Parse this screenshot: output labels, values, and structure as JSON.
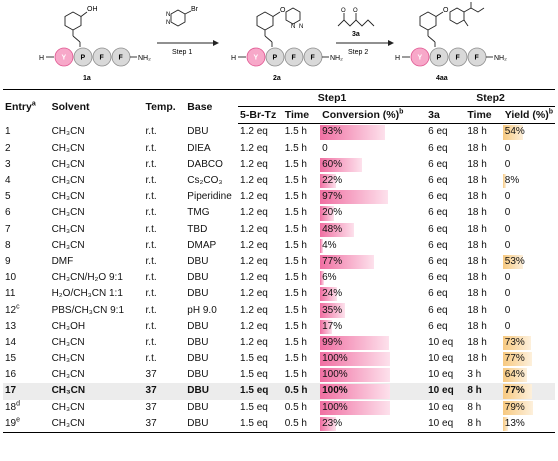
{
  "scheme": {
    "start_label": "1a",
    "inter_label": "2a",
    "product_label": "4aa",
    "step1_label": "Step 1",
    "step2_label": "Step 2",
    "reagent2_label": "3a",
    "peptide_residues": [
      "Y",
      "P",
      "F",
      "F"
    ],
    "n_term": "H",
    "c_term": "NH₂",
    "oh": "OH",
    "o": "O",
    "br": "Br",
    "n": "N",
    "colors": {
      "tyr": "#f7a8c9",
      "tyr_stroke": "#e05590",
      "res": "#d9d9d9",
      "res_stroke": "#8c8c8c"
    }
  },
  "table": {
    "headers": {
      "entry": "Entry",
      "entry_sup": "a",
      "solvent": "Solvent",
      "temp": "Temp.",
      "base": "Base",
      "step1": "Step1",
      "step2": "Step2",
      "brtz": "5-Br-Tz",
      "time1": "Time",
      "conv": "Conversion (%)",
      "conv_sup": "b",
      "eq3a": "3a",
      "time2": "Time",
      "yield": "Yield (%)",
      "yield_sup": "b"
    },
    "rows": [
      {
        "entry": "1",
        "entry_sup": "",
        "solvent": "CH₃CN",
        "temp": "r.t.",
        "base": "DBU",
        "brtz": "1.2 eq",
        "time1": "1.5 h",
        "conv": "93%",
        "conv_value": 93,
        "eq3a": "6 eq",
        "time2": "18 h",
        "yield": "54%",
        "yield_value": 54
      },
      {
        "entry": "2",
        "entry_sup": "",
        "solvent": "CH₃CN",
        "temp": "r.t.",
        "base": "DIEA",
        "brtz": "1.2 eq",
        "time1": "1.5 h",
        "conv": "0",
        "conv_value": 0,
        "eq3a": "6 eq",
        "time2": "18 h",
        "yield": "0",
        "yield_value": 0
      },
      {
        "entry": "3",
        "entry_sup": "",
        "solvent": "CH₃CN",
        "temp": "r.t.",
        "base": "DABCO",
        "brtz": "1.2 eq",
        "time1": "1.5 h",
        "conv": "60%",
        "conv_value": 60,
        "eq3a": "6 eq",
        "time2": "18 h",
        "yield": "0",
        "yield_value": 0
      },
      {
        "entry": "4",
        "entry_sup": "",
        "solvent": "CH₃CN",
        "temp": "r.t.",
        "base": "Cs₂CO₃",
        "brtz": "1.2 eq",
        "time1": "1.5 h",
        "conv": "22%",
        "conv_value": 22,
        "eq3a": "6 eq",
        "time2": "18 h",
        "yield": "8%",
        "yield_value": 8
      },
      {
        "entry": "5",
        "entry_sup": "",
        "solvent": "CH₃CN",
        "temp": "r.t.",
        "base": "Piperidine",
        "brtz": "1.2 eq",
        "time1": "1.5 h",
        "conv": "97%",
        "conv_value": 97,
        "eq3a": "6 eq",
        "time2": "18 h",
        "yield": "0",
        "yield_value": 0
      },
      {
        "entry": "6",
        "entry_sup": "",
        "solvent": "CH₃CN",
        "temp": "r.t.",
        "base": "TMG",
        "brtz": "1.2 eq",
        "time1": "1.5 h",
        "conv": "20%",
        "conv_value": 20,
        "eq3a": "6 eq",
        "time2": "18 h",
        "yield": "0",
        "yield_value": 0
      },
      {
        "entry": "7",
        "entry_sup": "",
        "solvent": "CH₃CN",
        "temp": "r.t.",
        "base": "TBD",
        "brtz": "1.2 eq",
        "time1": "1.5 h",
        "conv": "48%",
        "conv_value": 48,
        "eq3a": "6 eq",
        "time2": "18 h",
        "yield": "0",
        "yield_value": 0
      },
      {
        "entry": "8",
        "entry_sup": "",
        "solvent": "CH₃CN",
        "temp": "r.t.",
        "base": "DMAP",
        "brtz": "1.2 eq",
        "time1": "1.5 h",
        "conv": "4%",
        "conv_value": 4,
        "eq3a": "6 eq",
        "time2": "18 h",
        "yield": "0",
        "yield_value": 0
      },
      {
        "entry": "9",
        "entry_sup": "",
        "solvent": "DMF",
        "temp": "r.t.",
        "base": "DBU",
        "brtz": "1.2 eq",
        "time1": "1.5 h",
        "conv": "77%",
        "conv_value": 77,
        "eq3a": "6 eq",
        "time2": "18 h",
        "yield": "53%",
        "yield_value": 53
      },
      {
        "entry": "10",
        "entry_sup": "",
        "solvent": "CH₃CN/H₂O 9:1",
        "temp": "r.t.",
        "base": "DBU",
        "brtz": "1.2 eq",
        "time1": "1.5 h",
        "conv": "6%",
        "conv_value": 6,
        "eq3a": "6 eq",
        "time2": "18 h",
        "yield": "0",
        "yield_value": 0
      },
      {
        "entry": "11",
        "entry_sup": "",
        "solvent": "H₂O/CH₃CN 1:1",
        "temp": "r.t.",
        "base": "DBU",
        "brtz": "1.2 eq",
        "time1": "1.5 h",
        "conv": "24%",
        "conv_value": 24,
        "eq3a": "6 eq",
        "time2": "18 h",
        "yield": "0",
        "yield_value": 0
      },
      {
        "entry": "12",
        "entry_sup": "c",
        "solvent": "PBS/CH₃CN 9:1",
        "temp": "r.t.",
        "base": "pH 9.0",
        "brtz": "1.2 eq",
        "time1": "1.5 h",
        "conv": "35%",
        "conv_value": 35,
        "eq3a": "6 eq",
        "time2": "18 h",
        "yield": "0",
        "yield_value": 0
      },
      {
        "entry": "13",
        "entry_sup": "",
        "solvent": "CH₃OH",
        "temp": "r.t.",
        "base": "DBU",
        "brtz": "1.2 eq",
        "time1": "1.5 h",
        "conv": "17%",
        "conv_value": 17,
        "eq3a": "6 eq",
        "time2": "18 h",
        "yield": "0",
        "yield_value": 0
      },
      {
        "entry": "14",
        "entry_sup": "",
        "solvent": "CH₃CN",
        "temp": "r.t.",
        "base": "DBU",
        "brtz": "1.2 eq",
        "time1": "1.5 h",
        "conv": "99%",
        "conv_value": 99,
        "eq3a": "10 eq",
        "time2": "18 h",
        "yield": "73%",
        "yield_value": 73
      },
      {
        "entry": "15",
        "entry_sup": "",
        "solvent": "CH₃CN",
        "temp": "r.t.",
        "base": "DBU",
        "brtz": "1.5 eq",
        "time1": "1.5 h",
        "conv": "100%",
        "conv_value": 100,
        "eq3a": "10 eq",
        "time2": "18 h",
        "yield": "77%",
        "yield_value": 77
      },
      {
        "entry": "16",
        "entry_sup": "",
        "solvent": "CH₃CN",
        "temp": "37",
        "base": "DBU",
        "brtz": "1.5 eq",
        "time1": "1.5 h",
        "conv": "100%",
        "conv_value": 100,
        "eq3a": "10 eq",
        "time2": "3 h",
        "yield": "64%",
        "yield_value": 64
      },
      {
        "entry": "17",
        "entry_sup": "",
        "solvent": "CH₃CN",
        "temp": "37",
        "base": "DBU",
        "brtz": "1.5 eq",
        "time1": "0.5 h",
        "conv": "100%",
        "conv_value": 100,
        "eq3a": "10 eq",
        "time2": "8 h",
        "yield": "77%",
        "yield_value": 77,
        "highlight": true
      },
      {
        "entry": "18",
        "entry_sup": "d",
        "solvent": "CH₃CN",
        "temp": "37",
        "base": "DBU",
        "brtz": "1.5 eq",
        "time1": "0.5 h",
        "conv": "100%",
        "conv_value": 100,
        "eq3a": "10 eq",
        "time2": "8 h",
        "yield": "79%",
        "yield_value": 79
      },
      {
        "entry": "19",
        "entry_sup": "e",
        "solvent": "CH₃CN",
        "temp": "37",
        "base": "DBU",
        "brtz": "1.5 eq",
        "time1": "0.5 h",
        "conv": "23%",
        "conv_value": 23,
        "eq3a": "10 eq",
        "time2": "8 h",
        "yield": "13%",
        "yield_value": 13
      }
    ]
  }
}
